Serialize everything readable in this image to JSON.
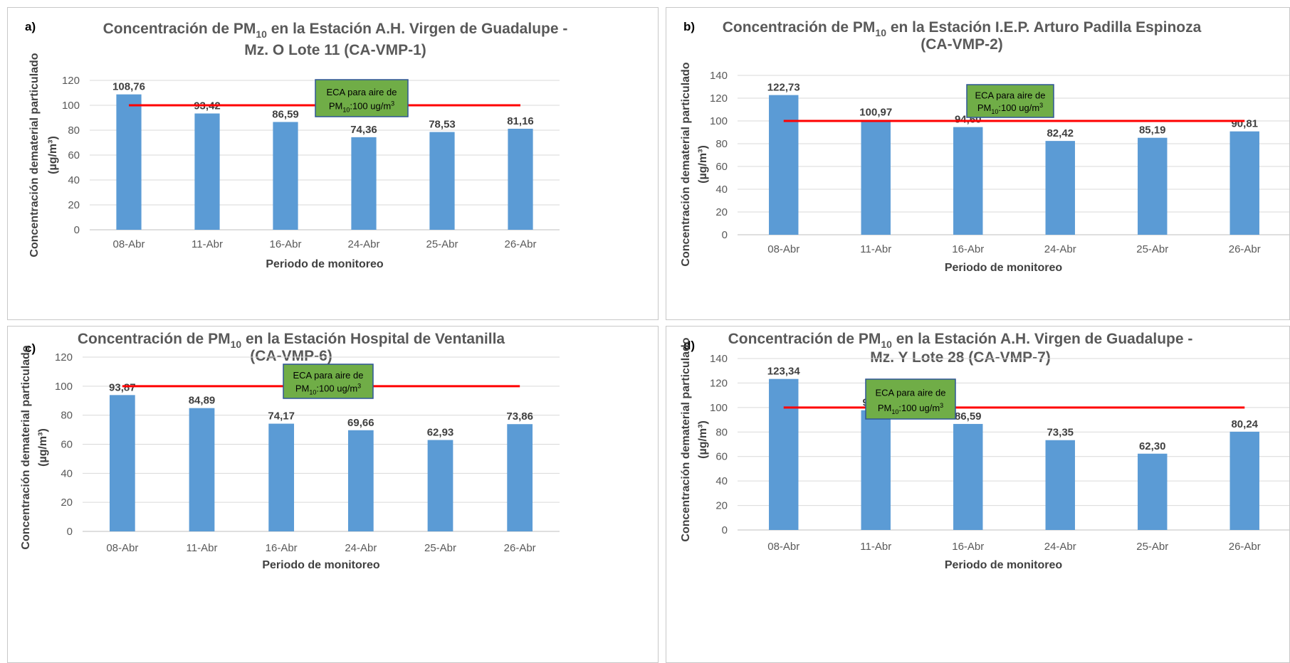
{
  "panels": [
    {
      "letter": "a)",
      "title_line1": "Concentración  de PM",
      "title_sub": "10",
      "title_line1_rest": "  en la Estación A.H. Virgen de Guadalupe -",
      "title_line2": "Mz. O Lote 11 (CA-VMP-1)",
      "eca_line1": "ECA para aire de",
      "eca_line2_pre": "PM",
      "eca_line2_sub": "10",
      "eca_line2_post": ":100 ug/m",
      "eca_line2_sup": "3"
    },
    {
      "letter": "b)",
      "title_line1": "Concentración  de PM",
      "title_sub": "10",
      "title_line1_rest": " en la Estación I.E.P. Arturo Padilla Espinoza",
      "title_line2": "(CA-VMP-2)",
      "eca_line1": "ECA para aire de",
      "eca_line2_pre": "PM",
      "eca_line2_sub": "10",
      "eca_line2_post": ":100 ug/m",
      "eca_line2_sup": "3"
    },
    {
      "letter": "c)",
      "title_line1": "Concentración  de PM",
      "title_sub": "10",
      "title_line1_rest": " en la Estación Hospital de Ventanilla",
      "title_line2": "(CA-VMP-6)",
      "eca_line1": "ECA para aire de",
      "eca_line2_pre": "PM",
      "eca_line2_sub": "10",
      "eca_line2_post": ":100 ug/m",
      "eca_line2_sup": "3"
    },
    {
      "letter": "d)",
      "title_line1": "Concentración  de PM",
      "title_sub": "10",
      "title_line1_rest": " en la Estación A.H. Virgen de Guadalupe -",
      "title_line2": "Mz. Y Lote 28 (CA-VMP-7)",
      "eca_line1": "ECA para aire de",
      "eca_line2_pre": "PM",
      "eca_line2_sub": "10",
      "eca_line2_post": ":100 ug/m",
      "eca_line2_sup": "3"
    }
  ],
  "chart_data": [
    {
      "type": "bar",
      "title": "Concentración de PM10 en la Estación A.H. Virgen de Guadalupe - Mz. O Lote 11 (CA-VMP-1)",
      "categories": [
        "08-Abr",
        "11-Abr",
        "16-Abr",
        "24-Abr",
        "25-Abr",
        "26-Abr"
      ],
      "values": [
        108.76,
        93.42,
        86.59,
        74.36,
        78.53,
        81.16
      ],
      "value_labels": [
        "108,76",
        "93,42",
        "86,59",
        "74,36",
        "78,53",
        "81,16"
      ],
      "ylim": [
        0,
        120
      ],
      "yticks": [
        0,
        20,
        40,
        60,
        80,
        100,
        120
      ],
      "xlabel": "Periodo de monitoreo",
      "ylabel_line1": "Concentración dematerial particulado",
      "ylabel_line2": "(µg/m³)",
      "threshold": 100,
      "bar_color": "#5b9bd5",
      "threshold_color": "#ff0000",
      "eca_box_color": "#70ad47",
      "grid": true,
      "legend": "none"
    },
    {
      "type": "bar",
      "title": "Concentración de PM10 en la Estación I.E.P. Arturo Padilla Espinoza (CA-VMP-2)",
      "categories": [
        "08-Abr",
        "11-Abr",
        "16-Abr",
        "24-Abr",
        "25-Abr",
        "26-Abr"
      ],
      "values": [
        122.73,
        100.97,
        94.6,
        82.42,
        85.19,
        90.81
      ],
      "value_labels": [
        "122,73",
        "100,97",
        "94,60",
        "82,42",
        "85,19",
        "90,81"
      ],
      "ylim": [
        0,
        140
      ],
      "yticks": [
        0,
        20,
        40,
        60,
        80,
        100,
        120,
        140
      ],
      "xlabel": "Periodo de monitoreo",
      "ylabel_line1": "Concentración dematerial particulado",
      "ylabel_line2": "(µg/m³)",
      "threshold": 100,
      "bar_color": "#5b9bd5",
      "threshold_color": "#ff0000",
      "eca_box_color": "#70ad47",
      "grid": true,
      "legend": "none"
    },
    {
      "type": "bar",
      "title": "Concentración de PM10 en la Estación Hospital de Ventanilla (CA-VMP-6)",
      "categories": [
        "08-Abr",
        "11-Abr",
        "16-Abr",
        "24-Abr",
        "25-Abr",
        "26-Abr"
      ],
      "values": [
        93.87,
        84.89,
        74.17,
        69.66,
        62.93,
        73.86
      ],
      "value_labels": [
        "93,87",
        "84,89",
        "74,17",
        "69,66",
        "62,93",
        "73,86"
      ],
      "ylim": [
        0,
        120
      ],
      "yticks": [
        0,
        20,
        40,
        60,
        80,
        100,
        120
      ],
      "xlabel": "Periodo de monitoreo",
      "ylabel_line1": "Concentración dematerial particulado",
      "ylabel_line2": "(µg/m³)",
      "threshold": 100,
      "bar_color": "#5b9bd5",
      "threshold_color": "#ff0000",
      "eca_box_color": "#70ad47",
      "grid": true,
      "legend": "none"
    },
    {
      "type": "bar",
      "title": "Concentración de PM10 en la Estación A.H. Virgen de Guadalupe - Mz. Y Lote 28 (CA-VMP-7)",
      "categories": [
        "08-Abr",
        "11-Abr",
        "16-Abr",
        "24-Abr",
        "25-Abr",
        "26-Abr"
      ],
      "values": [
        123.34,
        97.77,
        86.59,
        73.35,
        62.3,
        80.24
      ],
      "value_labels": [
        "123,34",
        "97,77",
        "86,59",
        "73,35",
        "62,30",
        "80,24"
      ],
      "ylim": [
        0,
        140
      ],
      "yticks": [
        0,
        20,
        40,
        60,
        80,
        100,
        120,
        140
      ],
      "xlabel": "Periodo de monitoreo",
      "ylabel_line1": "Concentración dematerial particulado",
      "ylabel_line2": "(µg/m³)",
      "threshold": 100,
      "bar_color": "#5b9bd5",
      "threshold_color": "#ff0000",
      "eca_box_color": "#70ad47",
      "grid": true,
      "legend": "none"
    }
  ]
}
